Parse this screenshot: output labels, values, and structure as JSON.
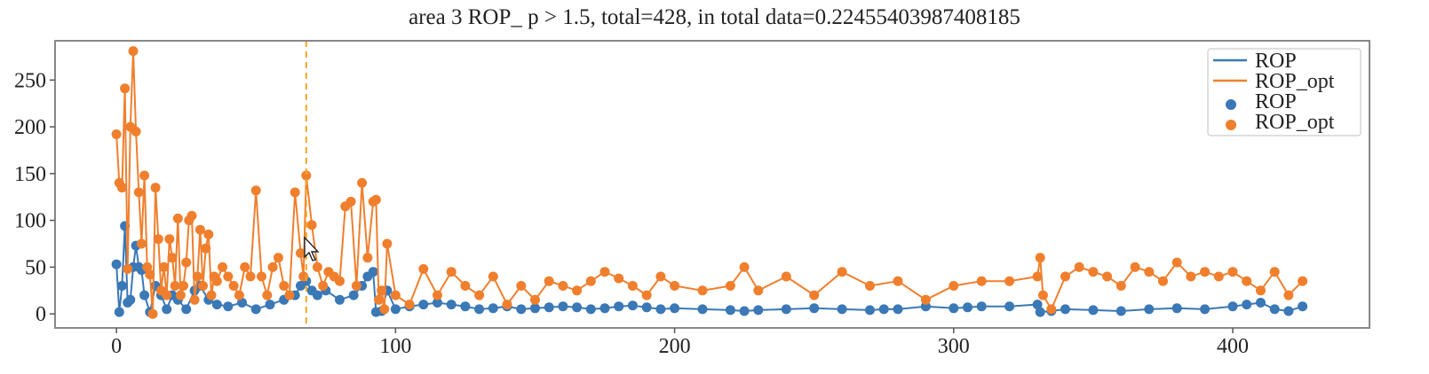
{
  "chart_data": {
    "type": "line",
    "title": "area 3 ROP_ p > 1.5, total=428, in total data=0.22455403987408185",
    "xlabel": "",
    "ylabel": "",
    "xlim": [
      -22,
      449
    ],
    "ylim": [
      -15,
      292
    ],
    "x_ticks": [
      0,
      100,
      200,
      300,
      400
    ],
    "y_ticks": [
      0,
      50,
      100,
      150,
      200,
      250
    ],
    "grid": false,
    "legend_position": "top-right",
    "vline": {
      "x": 68,
      "color": "#F5A623",
      "style": "dashed"
    },
    "series": [
      {
        "name": "ROP",
        "color": "#3A78B6",
        "x": [
          0,
          1,
          2,
          3,
          4,
          5,
          6,
          7,
          8,
          9,
          10,
          12,
          14,
          16,
          18,
          20,
          22,
          25,
          28,
          30,
          33,
          36,
          40,
          45,
          50,
          55,
          60,
          64,
          66,
          68,
          70,
          72,
          75,
          80,
          85,
          88,
          90,
          92,
          93,
          95,
          97,
          100,
          105,
          110,
          115,
          120,
          125,
          130,
          135,
          140,
          145,
          150,
          155,
          160,
          165,
          170,
          175,
          180,
          185,
          190,
          195,
          200,
          210,
          220,
          225,
          230,
          240,
          250,
          260,
          270,
          275,
          280,
          290,
          300,
          305,
          310,
          320,
          330,
          331,
          335,
          340,
          350,
          360,
          370,
          380,
          390,
          400,
          405,
          410,
          415,
          420,
          425
        ],
        "values": [
          53,
          2,
          30,
          94,
          12,
          15,
          50,
          73,
          50,
          47,
          20,
          2,
          30,
          20,
          5,
          20,
          15,
          5,
          25,
          30,
          15,
          10,
          8,
          12,
          5,
          10,
          15,
          20,
          30,
          35,
          25,
          20,
          25,
          15,
          20,
          30,
          40,
          45,
          2,
          3,
          25,
          5,
          8,
          10,
          12,
          10,
          8,
          5,
          6,
          8,
          5,
          6,
          7,
          8,
          7,
          5,
          6,
          8,
          9,
          7,
          5,
          6,
          5,
          4,
          3,
          4,
          5,
          6,
          5,
          4,
          5,
          5,
          8,
          6,
          7,
          8,
          8,
          10,
          2,
          3,
          5,
          4,
          3,
          5,
          6,
          5,
          8,
          10,
          12,
          5,
          3,
          8
        ]
      },
      {
        "name": "ROP_opt",
        "color": "#F07F2D",
        "x": [
          0,
          1,
          2,
          3,
          4,
          5,
          6,
          7,
          8,
          9,
          10,
          11,
          12,
          13,
          14,
          15,
          16,
          17,
          18,
          19,
          20,
          21,
          22,
          23,
          24,
          25,
          26,
          27,
          28,
          29,
          30,
          31,
          32,
          33,
          34,
          35,
          36,
          38,
          40,
          42,
          44,
          46,
          48,
          50,
          52,
          54,
          56,
          58,
          60,
          62,
          64,
          66,
          67,
          68,
          70,
          72,
          74,
          76,
          78,
          80,
          82,
          84,
          86,
          88,
          90,
          92,
          93,
          94,
          95,
          96,
          97,
          100,
          105,
          110,
          115,
          120,
          125,
          130,
          135,
          140,
          145,
          150,
          155,
          160,
          165,
          170,
          175,
          180,
          185,
          190,
          195,
          200,
          210,
          220,
          225,
          230,
          240,
          250,
          260,
          270,
          280,
          290,
          300,
          310,
          320,
          330,
          331,
          332,
          335,
          340,
          345,
          350,
          355,
          360,
          365,
          370,
          375,
          380,
          385,
          390,
          395,
          400,
          405,
          410,
          415,
          420,
          425
        ],
        "values": [
          192,
          140,
          135,
          241,
          48,
          200,
          281,
          195,
          130,
          75,
          148,
          50,
          42,
          0,
          135,
          80,
          25,
          50,
          20,
          80,
          60,
          30,
          102,
          20,
          30,
          55,
          100,
          105,
          15,
          40,
          90,
          30,
          70,
          85,
          20,
          40,
          35,
          50,
          40,
          30,
          20,
          50,
          40,
          132,
          40,
          20,
          50,
          60,
          30,
          20,
          130,
          65,
          40,
          148,
          95,
          50,
          30,
          45,
          40,
          35,
          115,
          120,
          30,
          140,
          60,
          120,
          122,
          15,
          25,
          5,
          75,
          20,
          10,
          48,
          20,
          45,
          30,
          20,
          40,
          10,
          30,
          15,
          35,
          30,
          25,
          35,
          45,
          38,
          30,
          20,
          40,
          30,
          25,
          30,
          50,
          25,
          40,
          20,
          45,
          30,
          35,
          15,
          30,
          35,
          35,
          40,
          60,
          20,
          5,
          40,
          50,
          45,
          40,
          30,
          50,
          45,
          35,
          55,
          40,
          45,
          40,
          45,
          35,
          25,
          45,
          20,
          35
        ]
      }
    ],
    "legend": [
      {
        "label": "ROP",
        "kind": "line",
        "series": 0
      },
      {
        "label": "ROP_opt",
        "kind": "line",
        "series": 1
      },
      {
        "label": "ROP",
        "kind": "marker",
        "series": 0
      },
      {
        "label": "ROP_opt",
        "kind": "marker",
        "series": 1
      }
    ]
  }
}
